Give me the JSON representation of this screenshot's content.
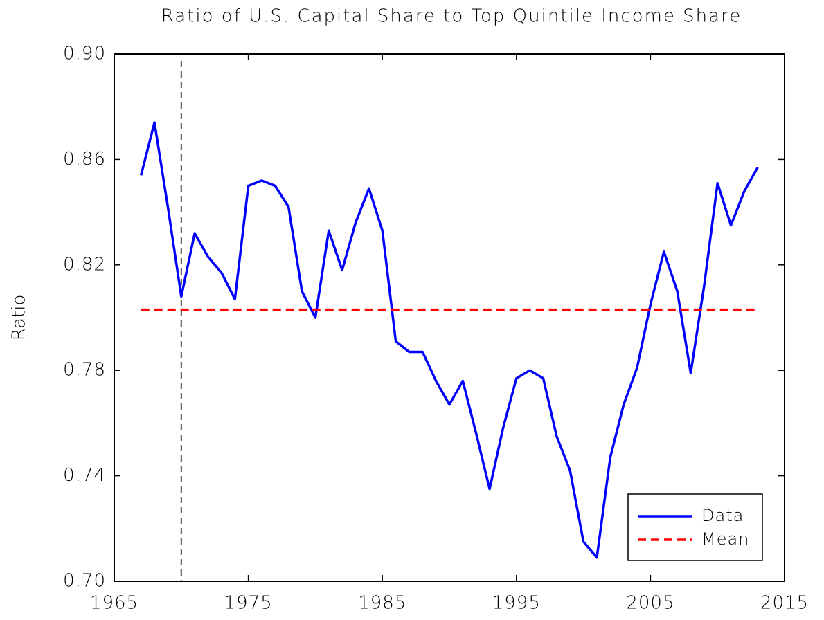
{
  "chart_data": {
    "type": "line",
    "title": "Ratio of U.S. Capital Share to Top Quintile Income Share",
    "y_label": "Ratio",
    "x": [
      1967,
      1968,
      1969,
      1970,
      1971,
      1972,
      1973,
      1974,
      1975,
      1976,
      1977,
      1978,
      1979,
      1980,
      1981,
      1982,
      1983,
      1984,
      1985,
      1986,
      1987,
      1988,
      1989,
      1990,
      1991,
      1992,
      1993,
      1994,
      1995,
      1996,
      1997,
      1998,
      1999,
      2000,
      2001,
      2002,
      2003,
      2004,
      2005,
      2006,
      2007,
      2008,
      2009,
      2010,
      2011,
      2012,
      2013
    ],
    "series": [
      {
        "name": "Data",
        "color": "#0000ff",
        "dash": false,
        "values": [
          0.854,
          0.874,
          0.842,
          0.808,
          0.832,
          0.823,
          0.817,
          0.807,
          0.85,
          0.852,
          0.85,
          0.842,
          0.81,
          0.8,
          0.833,
          0.818,
          0.836,
          0.849,
          0.833,
          0.791,
          0.787,
          0.787,
          0.776,
          0.767,
          0.776,
          0.756,
          0.735,
          0.758,
          0.777,
          0.78,
          0.777,
          0.755,
          0.742,
          0.715,
          0.709,
          0.747,
          0.767,
          0.781,
          0.805,
          0.825,
          0.81,
          0.779,
          0.812,
          0.851,
          0.835,
          0.848,
          0.857
        ]
      },
      {
        "name": "Mean",
        "color": "#ff0000",
        "dash": true,
        "values": [
          0.803,
          0.803,
          0.803,
          0.803,
          0.803,
          0.803,
          0.803,
          0.803,
          0.803,
          0.803,
          0.803,
          0.803,
          0.803,
          0.803,
          0.803,
          0.803,
          0.803,
          0.803,
          0.803,
          0.803,
          0.803,
          0.803,
          0.803,
          0.803,
          0.803,
          0.803,
          0.803,
          0.803,
          0.803,
          0.803,
          0.803,
          0.803,
          0.803,
          0.803,
          0.803,
          0.803,
          0.803,
          0.803,
          0.803,
          0.803,
          0.803,
          0.803,
          0.803,
          0.803,
          0.803,
          0.803,
          0.803
        ]
      }
    ],
    "vline": 1970,
    "xlim": [
      1965,
      2015
    ],
    "xticks": [
      1965,
      1975,
      1985,
      1995,
      2005,
      2015
    ],
    "ylim": [
      0.7,
      0.9
    ],
    "yticks": [
      {
        "value": 0.7,
        "label": "0.70"
      },
      0.74,
      0.78,
      0.82,
      0.86,
      {
        "value": 0.9,
        "label": "0.90"
      }
    ],
    "legend": "lower right"
  }
}
